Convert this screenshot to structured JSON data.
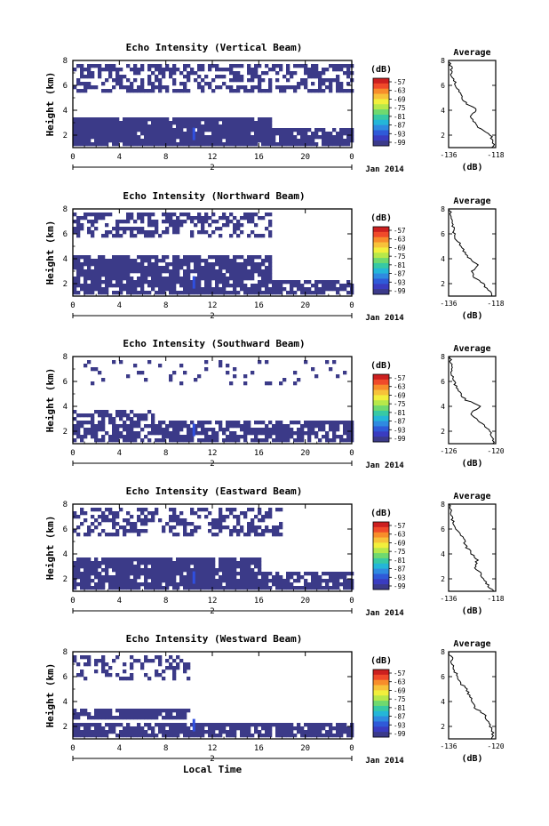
{
  "figure": {
    "xlabel": "Local Time",
    "date_label": "Jan 2014",
    "ylabel": "Height (km)",
    "colorbar_unit": "(dB)",
    "colorbar_ticks": [
      "-57",
      "-63",
      "-69",
      "-75",
      "-81",
      "-87",
      "-93",
      "-99"
    ],
    "colorbar_colors": [
      "#cc1f1f",
      "#f04a2a",
      "#f78d2b",
      "#f7c23a",
      "#f2ef3c",
      "#b7e84a",
      "#6fd96f",
      "#37c9a4",
      "#24b6d8",
      "#2f8ae0",
      "#2f5ad8",
      "#3a3cc0",
      "#3b3a8a"
    ],
    "background_color": "#3b3a88"
  },
  "chart_data": [
    {
      "type": "heatmap",
      "title": "Echo Intensity (Vertical Beam)",
      "xlabel": "",
      "ylabel": "Height (km)",
      "x_ticks": [
        "0",
        "4",
        "8",
        "12",
        "16",
        "20",
        "0"
      ],
      "x_day_label": "2",
      "y_ticks": [
        "2",
        "4",
        "6",
        "8"
      ],
      "xlim": [
        0,
        24
      ],
      "ylim": [
        1,
        8
      ],
      "colorbar": {
        "label": "(dB)",
        "range": [
          -99,
          -57
        ]
      },
      "echo_bands": [
        {
          "t0": 0,
          "t1": 24,
          "h0": 5.5,
          "h1": 8.0,
          "cover": 0.55
        },
        {
          "t0": 0,
          "t1": 17,
          "h0": 1.2,
          "h1": 3.7,
          "cover": 0.95
        },
        {
          "t0": 17,
          "t1": 24,
          "h0": 1.2,
          "h1": 2.6,
          "cover": 0.85
        }
      ],
      "average_profile": {
        "title": "Average",
        "xlabel": "(dB)",
        "x_ticks": [
          "-136",
          "-118"
        ],
        "xlim": [
          -136,
          -118
        ],
        "y_ticks": [
          "2",
          "4",
          "6",
          "8"
        ],
        "ylim": [
          1,
          8
        ],
        "height": [
          1.0,
          1.5,
          2.0,
          2.5,
          3.0,
          3.5,
          4.0,
          4.5,
          5.0,
          5.5,
          6.0,
          6.5,
          7.0,
          7.5,
          8.0
        ],
        "value": [
          -119,
          -119,
          -120,
          -124,
          -126,
          -128,
          -125,
          -129,
          -131,
          -132,
          -133,
          -134,
          -135,
          -135,
          -136
        ]
      }
    },
    {
      "type": "heatmap",
      "title": "Echo Intensity (Northward Beam)",
      "xlabel": "",
      "ylabel": "Height (km)",
      "x_ticks": [
        "0",
        "4",
        "8",
        "12",
        "16",
        "20",
        "0"
      ],
      "x_day_label": "2",
      "y_ticks": [
        "2",
        "4",
        "6",
        "8"
      ],
      "xlim": [
        0,
        24
      ],
      "ylim": [
        1,
        8
      ],
      "colorbar": {
        "label": "(dB)",
        "range": [
          -99,
          -57
        ]
      },
      "echo_bands": [
        {
          "t0": 0,
          "t1": 17,
          "h0": 5.8,
          "h1": 8.0,
          "cover": 0.5
        },
        {
          "t0": 0,
          "t1": 17,
          "h0": 1.2,
          "h1": 4.3,
          "cover": 0.85
        },
        {
          "t0": 17,
          "t1": 24,
          "h0": 1.2,
          "h1": 2.4,
          "cover": 0.8
        }
      ],
      "average_profile": {
        "title": "Average",
        "xlabel": "(dB)",
        "x_ticks": [
          "-136",
          "-118"
        ],
        "xlim": [
          -136,
          -118
        ],
        "y_ticks": [
          "2",
          "4",
          "6",
          "8"
        ],
        "ylim": [
          1,
          8
        ],
        "height": [
          1.0,
          1.5,
          2.0,
          2.5,
          3.0,
          3.5,
          4.0,
          4.5,
          5.0,
          5.5,
          6.0,
          6.5,
          7.0,
          7.5,
          8.0
        ],
        "value": [
          -119,
          -121,
          -123,
          -126,
          -127,
          -125,
          -128,
          -130,
          -131,
          -133,
          -134,
          -134,
          -135,
          -135,
          -136
        ]
      }
    },
    {
      "type": "heatmap",
      "title": "Echo Intensity (Southward Beam)",
      "xlabel": "",
      "ylabel": "Height (km)",
      "x_ticks": [
        "0",
        "4",
        "8",
        "12",
        "16",
        "20",
        "0"
      ],
      "x_day_label": "2",
      "y_ticks": [
        "2",
        "4",
        "6",
        "8"
      ],
      "xlim": [
        0,
        24
      ],
      "ylim": [
        1,
        8
      ],
      "colorbar": {
        "label": "(dB)",
        "range": [
          -99,
          -57
        ]
      },
      "echo_bands": [
        {
          "t0": 0,
          "t1": 24,
          "h0": 6.0,
          "h1": 8.0,
          "cover": 0.12
        },
        {
          "t0": 0,
          "t1": 24,
          "h0": 1.2,
          "h1": 3.0,
          "cover": 0.75
        },
        {
          "t0": 0,
          "t1": 7,
          "h0": 3.0,
          "h1": 3.8,
          "cover": 0.55
        }
      ],
      "average_profile": {
        "title": "Average",
        "xlabel": "(dB)",
        "x_ticks": [
          "-126",
          "-120"
        ],
        "xlim": [
          -126,
          -120
        ],
        "y_ticks": [
          "2",
          "4",
          "6",
          "8"
        ],
        "ylim": [
          1,
          8
        ],
        "height": [
          1.0,
          1.5,
          2.0,
          2.5,
          3.0,
          3.5,
          4.0,
          4.5,
          5.0,
          5.5,
          6.0,
          6.5,
          7.0,
          7.5,
          8.0
        ],
        "value": [
          -120.2,
          -120.4,
          -120.8,
          -121.6,
          -122.5,
          -123.2,
          -121.8,
          -123.8,
          -124.5,
          -125.0,
          -125.3,
          -125.5,
          -125.6,
          -125.7,
          -125.8
        ]
      }
    },
    {
      "type": "heatmap",
      "title": "Echo Intensity (Eastward Beam)",
      "xlabel": "",
      "ylabel": "Height (km)",
      "x_ticks": [
        "0",
        "4",
        "8",
        "12",
        "16",
        "20",
        "0"
      ],
      "x_day_label": "2",
      "y_ticks": [
        "2",
        "4",
        "6",
        "8"
      ],
      "xlim": [
        0,
        24
      ],
      "ylim": [
        1,
        8
      ],
      "colorbar": {
        "label": "(dB)",
        "range": [
          -99,
          -57
        ]
      },
      "echo_bands": [
        {
          "t0": 0,
          "t1": 18,
          "h0": 5.5,
          "h1": 8.0,
          "cover": 0.45
        },
        {
          "t0": 0,
          "t1": 16,
          "h0": 1.2,
          "h1": 3.8,
          "cover": 0.9
        },
        {
          "t0": 16,
          "t1": 24,
          "h0": 1.2,
          "h1": 2.8,
          "cover": 0.8
        }
      ],
      "average_profile": {
        "title": "Average",
        "xlabel": "(dB)",
        "x_ticks": [
          "-136",
          "-118"
        ],
        "xlim": [
          -136,
          -118
        ],
        "y_ticks": [
          "2",
          "4",
          "6",
          "8"
        ],
        "ylim": [
          1,
          8
        ],
        "height": [
          1.0,
          1.5,
          2.0,
          2.5,
          3.0,
          3.5,
          4.0,
          4.5,
          5.0,
          5.5,
          6.0,
          6.5,
          7.0,
          7.5,
          8.0
        ],
        "value": [
          -119,
          -121,
          -123,
          -124,
          -126,
          -125,
          -127,
          -129,
          -130,
          -131,
          -133,
          -134,
          -135,
          -135,
          -136
        ]
      }
    },
    {
      "type": "heatmap",
      "title": "Echo Intensity (Westward Beam)",
      "xlabel": "Local Time",
      "ylabel": "Height (km)",
      "x_ticks": [
        "0",
        "4",
        "8",
        "12",
        "16",
        "20",
        "0"
      ],
      "x_day_label": "2",
      "y_ticks": [
        "2",
        "4",
        "6",
        "8"
      ],
      "xlim": [
        0,
        24
      ],
      "ylim": [
        1,
        8
      ],
      "colorbar": {
        "label": "(dB)",
        "range": [
          -99,
          -57
        ]
      },
      "echo_bands": [
        {
          "t0": 0,
          "t1": 10,
          "h0": 6.0,
          "h1": 8.0,
          "cover": 0.35
        },
        {
          "t0": 0,
          "t1": 10,
          "h0": 2.6,
          "h1": 3.6,
          "cover": 0.85
        },
        {
          "t0": 0,
          "t1": 24,
          "h0": 1.2,
          "h1": 2.5,
          "cover": 0.85
        }
      ],
      "average_profile": {
        "title": "Average",
        "xlabel": "(dB)",
        "x_ticks": [
          "-136",
          "-120"
        ],
        "xlim": [
          -136,
          -120
        ],
        "y_ticks": [
          "2",
          "4",
          "6",
          "8"
        ],
        "ylim": [
          1,
          8
        ],
        "height": [
          1.0,
          1.5,
          2.0,
          2.5,
          3.0,
          3.5,
          4.0,
          4.5,
          5.0,
          5.5,
          6.0,
          6.5,
          7.0,
          7.5,
          8.0
        ],
        "value": [
          -121,
          -121,
          -122,
          -123,
          -124,
          -127,
          -128,
          -129,
          -130,
          -132,
          -133,
          -134,
          -135,
          -135,
          -136
        ]
      }
    }
  ]
}
